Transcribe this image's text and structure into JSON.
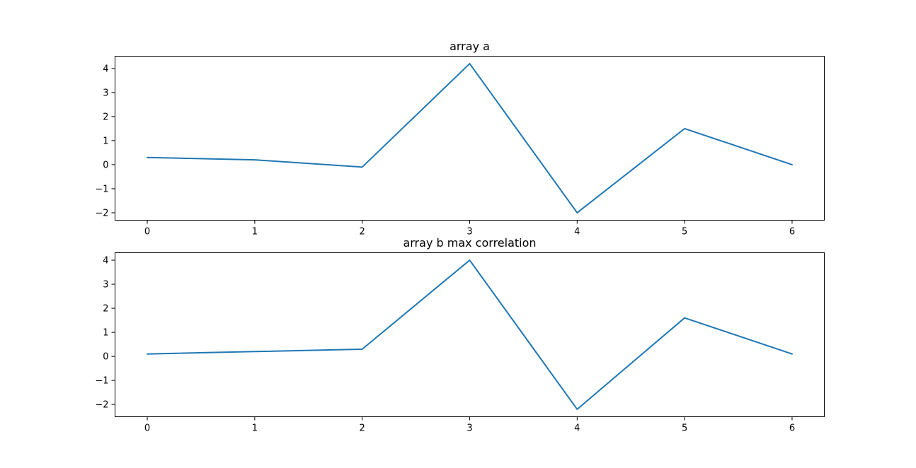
{
  "chart_data": [
    {
      "type": "line",
      "title": "array a",
      "xlabel": "",
      "ylabel": "",
      "x": [
        0,
        1,
        2,
        3,
        4,
        5,
        6
      ],
      "series": [
        {
          "values": [
            0.3,
            0.2,
            -0.1,
            4.2,
            -2.0,
            1.5,
            0.0
          ]
        }
      ],
      "xticks": [
        0,
        1,
        2,
        3,
        4,
        5,
        6
      ],
      "yticks": [
        -2,
        -1,
        0,
        1,
        2,
        3,
        4
      ],
      "xtick_labels": [
        "0",
        "1",
        "2",
        "3",
        "4",
        "5",
        "6"
      ],
      "ytick_labels": [
        "−2",
        "−1",
        "0",
        "1",
        "2",
        "3",
        "4"
      ],
      "xlim": [
        -0.3,
        6.3
      ],
      "ylim": [
        -2.31,
        4.51
      ],
      "grid": false,
      "line_color": "#1f77b4"
    },
    {
      "type": "line",
      "title": "array b max correlation",
      "xlabel": "",
      "ylabel": "",
      "x": [
        0,
        1,
        2,
        3,
        4,
        5,
        6
      ],
      "series": [
        {
          "values": [
            0.1,
            0.2,
            0.3,
            4.0,
            -2.2,
            1.6,
            0.1
          ]
        }
      ],
      "xticks": [
        0,
        1,
        2,
        3,
        4,
        5,
        6
      ],
      "yticks": [
        -2,
        -1,
        0,
        1,
        2,
        3,
        4
      ],
      "xtick_labels": [
        "0",
        "1",
        "2",
        "3",
        "4",
        "5",
        "6"
      ],
      "ytick_labels": [
        "−2",
        "−1",
        "0",
        "1",
        "2",
        "3",
        "4"
      ],
      "xlim": [
        -0.3,
        6.3
      ],
      "ylim": [
        -2.51,
        4.31
      ],
      "grid": false,
      "line_color": "#1f77b4"
    }
  ]
}
